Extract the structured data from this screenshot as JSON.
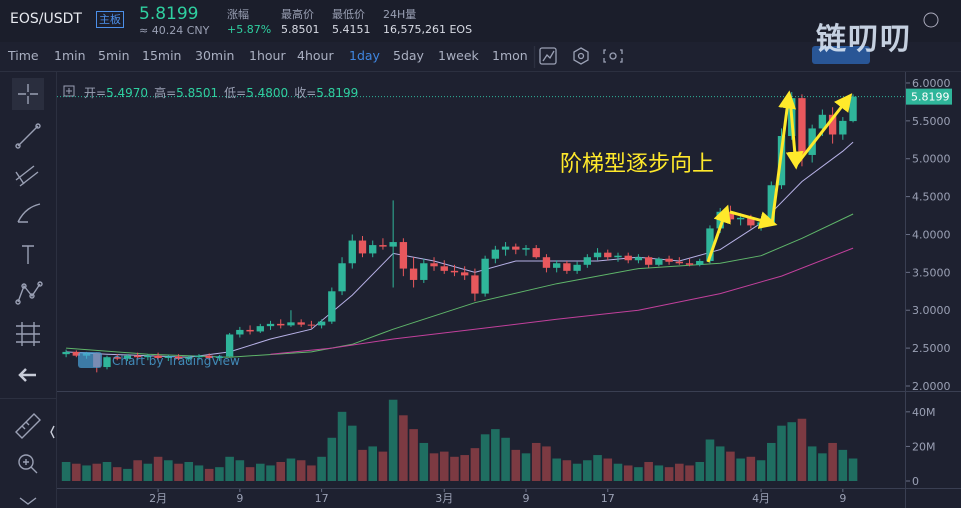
{
  "header": {
    "symbol": "EOS/USDT",
    "board": "主板",
    "price": "5.8199",
    "cny": "≈ 40.24 CNY",
    "stats": [
      {
        "label": "涨幅",
        "value": "+5.87%"
      },
      {
        "label": "最高价",
        "value": "5.8501"
      },
      {
        "label": "最低价",
        "value": "5.4151"
      },
      {
        "label": "24H量",
        "value": "16,575,261 EOS"
      }
    ]
  },
  "toolbar": {
    "items": [
      "Time",
      "1min",
      "5min",
      "15min",
      "30min",
      "1hour",
      "4hour",
      "1day",
      "5day",
      "1week",
      "1mon"
    ],
    "active": "1day"
  },
  "watermark": "链叨叨",
  "credit": "Chart by TradingView",
  "chart_data": {
    "type": "candlestick",
    "ohlc_legend": [
      {
        "label": "开=",
        "value": "5.4970"
      },
      {
        "label": "高=",
        "value": "5.8501"
      },
      {
        "label": "低=",
        "value": "5.4800"
      },
      {
        "label": "收=",
        "value": "5.8199"
      }
    ],
    "annotation": "阶梯型逐步向上",
    "categories": [
      null,
      null,
      null,
      null,
      null,
      null,
      null,
      null,
      null,
      "2月",
      null,
      null,
      null,
      null,
      null,
      null,
      null,
      "9",
      null,
      null,
      null,
      null,
      null,
      null,
      null,
      "17",
      null,
      null,
      null,
      null,
      null,
      null,
      null,
      null,
      null,
      null,
      null,
      "3月",
      null,
      null,
      null,
      null,
      null,
      null,
      null,
      "9",
      null,
      null,
      null,
      null,
      null,
      null,
      null,
      "17",
      null,
      null,
      null,
      null,
      null,
      null,
      null,
      null,
      null,
      null,
      null,
      null,
      null,
      null,
      "4月",
      null,
      null,
      null,
      null,
      null,
      null,
      null,
      "9",
      null
    ],
    "open": [
      2.42,
      2.45,
      2.4,
      2.43,
      2.25,
      2.38,
      2.36,
      2.4,
      2.38,
      2.4,
      2.37,
      2.39,
      2.36,
      2.38,
      2.4,
      2.37,
      2.39,
      2.68,
      2.74,
      2.72,
      2.79,
      2.82,
      2.8,
      2.84,
      2.81,
      2.8,
      2.85,
      3.25,
      3.62,
      3.92,
      3.75,
      3.86,
      3.84,
      3.9,
      3.55,
      3.4,
      3.62,
      3.58,
      3.52,
      3.5,
      3.46,
      3.22,
      3.68,
      3.8,
      3.84,
      3.8,
      3.82,
      3.7,
      3.56,
      3.62,
      3.52,
      3.6,
      3.7,
      3.76,
      3.7,
      3.72,
      3.66,
      3.7,
      3.6,
      3.68,
      3.64,
      3.62,
      3.6,
      3.65,
      4.08,
      4.3,
      4.2,
      4.22,
      4.12,
      4.16,
      4.65,
      5.3,
      5.8,
      5.05,
      5.4,
      5.58,
      5.32,
      5.497
    ],
    "high": [
      2.48,
      2.47,
      2.45,
      2.44,
      2.4,
      2.42,
      2.42,
      2.44,
      2.42,
      2.44,
      2.41,
      2.42,
      2.4,
      2.42,
      2.43,
      2.41,
      2.7,
      2.78,
      2.8,
      2.82,
      2.86,
      2.88,
      3.0,
      2.88,
      2.86,
      2.88,
      3.3,
      3.7,
      4.0,
      3.98,
      3.92,
      3.95,
      4.45,
      3.95,
      3.7,
      3.68,
      3.7,
      3.66,
      3.6,
      3.58,
      3.55,
      3.72,
      3.85,
      3.9,
      3.88,
      3.86,
      3.86,
      3.74,
      3.66,
      3.65,
      3.64,
      3.74,
      3.82,
      3.8,
      3.76,
      3.76,
      3.74,
      3.72,
      3.7,
      3.72,
      3.7,
      3.68,
      3.68,
      4.12,
      4.35,
      4.38,
      4.28,
      4.26,
      4.2,
      4.7,
      5.4,
      5.88,
      5.85,
      5.45,
      5.65,
      5.68,
      5.55,
      5.8501
    ],
    "low": [
      2.38,
      2.38,
      2.36,
      2.18,
      2.22,
      2.34,
      2.33,
      2.36,
      2.34,
      2.35,
      2.33,
      2.34,
      2.32,
      2.35,
      2.35,
      2.33,
      2.38,
      2.64,
      2.68,
      2.7,
      2.74,
      2.76,
      2.78,
      2.78,
      2.76,
      2.76,
      2.82,
      3.2,
      3.55,
      3.7,
      3.7,
      3.8,
      3.3,
      3.45,
      3.3,
      3.36,
      3.52,
      3.48,
      3.45,
      3.4,
      3.12,
      3.18,
      3.62,
      3.72,
      3.74,
      3.72,
      3.68,
      3.5,
      3.5,
      3.48,
      3.48,
      3.56,
      3.66,
      3.66,
      3.64,
      3.62,
      3.62,
      3.56,
      3.58,
      3.6,
      3.6,
      3.58,
      3.58,
      3.62,
      4.02,
      4.16,
      4.12,
      4.08,
      4.05,
      4.12,
      4.6,
      5.25,
      4.9,
      4.95,
      5.3,
      5.2,
      5.25,
      5.48
    ],
    "close": [
      2.45,
      2.4,
      2.43,
      2.25,
      2.38,
      2.36,
      2.4,
      2.38,
      2.4,
      2.37,
      2.39,
      2.36,
      2.38,
      2.4,
      2.37,
      2.39,
      2.68,
      2.74,
      2.72,
      2.79,
      2.82,
      2.8,
      2.84,
      2.81,
      2.8,
      2.85,
      3.25,
      3.62,
      3.92,
      3.75,
      3.86,
      3.84,
      3.9,
      3.55,
      3.4,
      3.62,
      3.58,
      3.52,
      3.5,
      3.46,
      3.22,
      3.68,
      3.8,
      3.84,
      3.8,
      3.82,
      3.7,
      3.56,
      3.62,
      3.52,
      3.6,
      3.7,
      3.76,
      3.7,
      3.72,
      3.66,
      3.7,
      3.6,
      3.68,
      3.64,
      3.62,
      3.6,
      3.65,
      4.08,
      4.3,
      4.2,
      4.22,
      4.12,
      4.16,
      4.65,
      5.3,
      5.8,
      5.05,
      5.4,
      5.58,
      5.32,
      5.5,
      5.8199
    ],
    "volume": [
      11000000,
      10000000,
      9000000,
      10000000,
      11000000,
      8000000,
      7000000,
      12000000,
      10000000,
      14000000,
      12000000,
      10000000,
      11000000,
      9000000,
      7000000,
      8000000,
      14000000,
      12000000,
      8000000,
      10000000,
      9000000,
      11000000,
      13000000,
      12000000,
      9000000,
      14000000,
      25000000,
      40000000,
      32000000,
      18000000,
      20000000,
      17000000,
      47000000,
      38000000,
      30000000,
      22000000,
      16000000,
      17000000,
      14000000,
      15000000,
      19000000,
      27000000,
      30000000,
      25000000,
      18000000,
      16000000,
      22000000,
      20000000,
      13000000,
      12000000,
      10000000,
      12000000,
      15000000,
      13000000,
      10000000,
      9000000,
      8000000,
      11000000,
      9000000,
      8000000,
      10000000,
      9000000,
      11000000,
      24000000,
      20000000,
      17000000,
      13000000,
      14000000,
      12000000,
      22000000,
      32000000,
      34000000,
      36000000,
      20000000,
      16000000,
      22000000,
      18000000,
      13000000
    ],
    "ma": [
      {
        "color": "#b7b1e6",
        "x": [
          0,
          4,
          8,
          12,
          16,
          20,
          24,
          28,
          32,
          36,
          40,
          44,
          48,
          52,
          56,
          60,
          64,
          68,
          72,
          76,
          77
        ],
        "values": [
          2.45,
          2.42,
          2.4,
          2.38,
          2.45,
          2.62,
          2.75,
          3.2,
          3.75,
          3.65,
          3.5,
          3.65,
          3.65,
          3.65,
          3.7,
          3.65,
          3.8,
          4.15,
          4.7,
          5.1,
          5.22
        ]
      },
      {
        "color": "#5fb56a",
        "x": [
          0,
          8,
          16,
          24,
          28,
          32,
          40,
          48,
          56,
          64,
          68,
          72,
          77
        ],
        "values": [
          2.5,
          2.42,
          2.38,
          2.45,
          2.55,
          2.75,
          3.1,
          3.35,
          3.55,
          3.62,
          3.72,
          3.95,
          4.27
        ]
      },
      {
        "color": "#c2409c",
        "x": [
          20,
          26,
          32,
          40,
          48,
          56,
          64,
          70,
          77
        ],
        "values": [
          2.42,
          2.5,
          2.62,
          2.75,
          2.88,
          3.0,
          3.22,
          3.45,
          3.82
        ]
      }
    ],
    "up_color": "#2fb59a",
    "down_color": "#e8585d",
    "vol_up_color": "#1f6e61",
    "vol_down_color": "#7c3a42",
    "last_price": {
      "value": 5.8199,
      "label": "5.8199"
    },
    "ylim": [
      1.947,
      6.145
    ],
    "yticks": [
      {
        "value": 2,
        "label": "2.0000"
      },
      {
        "value": 2.5,
        "label": "2.5000"
      },
      {
        "value": 3,
        "label": "3.0000"
      },
      {
        "value": 3.5,
        "label": "3.5000"
      },
      {
        "value": 4,
        "label": "4.0000"
      },
      {
        "value": 4.5,
        "label": "4.5000"
      },
      {
        "value": 5,
        "label": "5.0000"
      },
      {
        "value": 5.5,
        "label": "5.5000"
      },
      {
        "value": 6,
        "label": "6.0000"
      }
    ],
    "vlim": [
      0,
      48000000
    ],
    "vticks": [
      {
        "value": 0,
        "label": "0"
      },
      {
        "value": 20000000,
        "label": "20M"
      },
      {
        "value": 40000000,
        "label": "40M"
      }
    ]
  }
}
